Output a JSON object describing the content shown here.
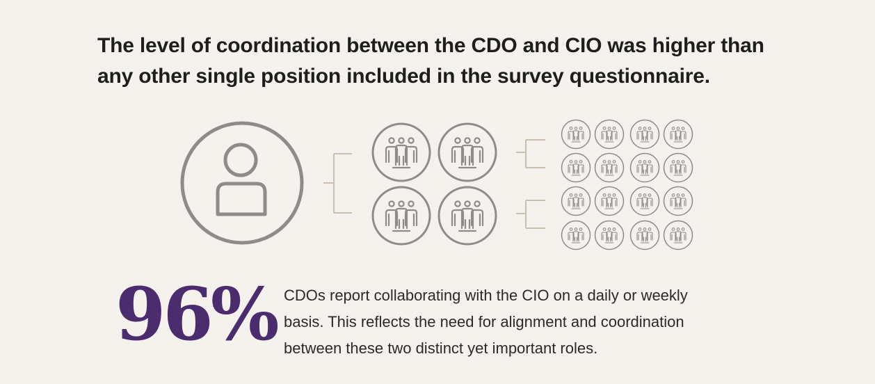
{
  "headline": {
    "line1": "The level of coordination between the CDO and CIO was higher than",
    "line2": "any other single position included in the survey questionnaire."
  },
  "graphic": {
    "single_person_icon": "person-icon",
    "medium_group_icon": "group-of-three-icon",
    "small_group_icon": "group-of-three-icon",
    "medium_groups_count": 4,
    "small_groups_count": 16,
    "colors": {
      "icon_stroke": "#8d8c88",
      "connector": "#c9bfae"
    }
  },
  "stat": {
    "value": "96%",
    "color": "#4b2c6e"
  },
  "description": {
    "line1": "CDOs report collaborating with the CIO on a daily or weekly",
    "line2": "basis. This reflects the need for alignment and coordination",
    "line3": "between these two distinct yet important roles."
  },
  "colors": {
    "background": "#f5f2ee",
    "text": "#1e1e1e"
  }
}
